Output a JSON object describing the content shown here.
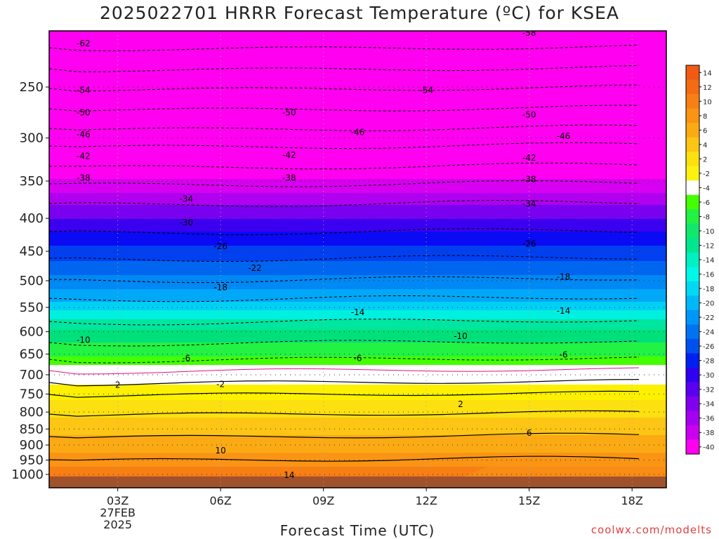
{
  "title": "2025022701 HRRR Forecast Temperature (ºC) for KSEA",
  "credit": "coolwx.com/modelts",
  "chart_data": {
    "type": "heatmap",
    "title": "2025022701 HRRR Forecast Temperature (ºC) for KSEA",
    "xlabel": "Forecast Time (UTC)",
    "ylabel": "",
    "x_range_hours_utc": [
      1,
      19
    ],
    "y_range_hpa": [
      1050,
      200
    ],
    "y_scale": "log-pressure (inverted)",
    "y_ticks": [
      250,
      300,
      350,
      400,
      450,
      500,
      550,
      600,
      650,
      700,
      750,
      800,
      850,
      900,
      950,
      1000
    ],
    "x_ticks": [
      {
        "hour": 3,
        "label": "03Z",
        "sublabel1": "27FEB",
        "sublabel2": "2025"
      },
      {
        "hour": 6,
        "label": "06Z"
      },
      {
        "hour": 9,
        "label": "09Z"
      },
      {
        "hour": 12,
        "label": "12Z"
      },
      {
        "hour": 15,
        "label": "15Z"
      },
      {
        "hour": 18,
        "label": "18Z"
      }
    ],
    "colorbar_ticks": [
      "14",
      "12",
      "10",
      "8",
      "6",
      "4",
      "2",
      "-2",
      "-4",
      "-6",
      "-8",
      "-10",
      "-12",
      "-14",
      "-16",
      "-18",
      "-20",
      "-22",
      "-24",
      "-26",
      "-28",
      "-30",
      "-32",
      "-34",
      "-36",
      "-38",
      "-40"
    ],
    "colorbar_colors": [
      "#f25a14",
      "#f56b14",
      "#f77f14",
      "#f99414",
      "#fbaa14",
      "#fdc514",
      "#fce010",
      "#fcf210",
      "#ffffff",
      "#44ff00",
      "#22f244",
      "#11e86a",
      "#00e68f",
      "#00f0c0",
      "#00f7e7",
      "#00d8f4",
      "#00b8f7",
      "#0096f7",
      "#0074f0",
      "#0050f0",
      "#0020f0",
      "#3000f0",
      "#5a00f0",
      "#8200f0",
      "#a600f0",
      "#cc00f0",
      "#ff00f0"
    ],
    "contour_labels": [
      {
        "text": "-62",
        "hour": 2.0,
        "p": 214
      },
      {
        "text": "-58",
        "hour": 15.0,
        "p": 206
      },
      {
        "text": "-54",
        "hour": 2.0,
        "p": 253
      },
      {
        "text": "-54",
        "hour": 12.0,
        "p": 253
      },
      {
        "text": "-50",
        "hour": 2.0,
        "p": 274
      },
      {
        "text": "-50",
        "hour": 8.0,
        "p": 274
      },
      {
        "text": "-50",
        "hour": 15.0,
        "p": 276
      },
      {
        "text": "-46",
        "hour": 2.0,
        "p": 296
      },
      {
        "text": "-46",
        "hour": 10.0,
        "p": 294
      },
      {
        "text": "-46",
        "hour": 16.0,
        "p": 298
      },
      {
        "text": "-42",
        "hour": 2.0,
        "p": 320
      },
      {
        "text": "-42",
        "hour": 8.0,
        "p": 319
      },
      {
        "text": "-42",
        "hour": 15.0,
        "p": 322
      },
      {
        "text": "-38",
        "hour": 2.0,
        "p": 346
      },
      {
        "text": "-38",
        "hour": 8.0,
        "p": 346
      },
      {
        "text": "-38",
        "hour": 15.0,
        "p": 348
      },
      {
        "text": "-34",
        "hour": 5.0,
        "p": 373
      },
      {
        "text": "-34",
        "hour": 15.0,
        "p": 380
      },
      {
        "text": "-30",
        "hour": 5.0,
        "p": 406
      },
      {
        "text": "-26",
        "hour": 6.0,
        "p": 442
      },
      {
        "text": "-26",
        "hour": 15.0,
        "p": 438
      },
      {
        "text": "-22",
        "hour": 7.0,
        "p": 478
      },
      {
        "text": "-18",
        "hour": 6.0,
        "p": 512
      },
      {
        "text": "-18",
        "hour": 16.0,
        "p": 493
      },
      {
        "text": "-14",
        "hour": 10.0,
        "p": 560
      },
      {
        "text": "-14",
        "hour": 16.0,
        "p": 557
      },
      {
        "text": "-10",
        "hour": 2.0,
        "p": 618
      },
      {
        "text": "-10",
        "hour": 13.0,
        "p": 610
      },
      {
        "text": "-6",
        "hour": 5.0,
        "p": 660
      },
      {
        "text": "-6",
        "hour": 10.0,
        "p": 660
      },
      {
        "text": "-6",
        "hour": 16.0,
        "p": 652
      },
      {
        "text": "-2",
        "hour": 6.0,
        "p": 724
      },
      {
        "text": "2",
        "hour": 3.0,
        "p": 726
      },
      {
        "text": "2",
        "hour": 13.0,
        "p": 778
      },
      {
        "text": "6",
        "hour": 15.0,
        "p": 862
      },
      {
        "text": "10",
        "hour": 6.0,
        "p": 918
      },
      {
        "text": "14",
        "hour": 8.0,
        "p": 1002
      }
    ]
  }
}
